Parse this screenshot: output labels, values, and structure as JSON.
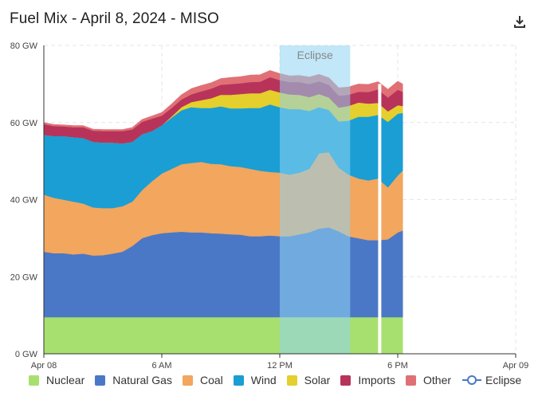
{
  "header": {
    "title": "Fuel Mix - April 8, 2024 - MISO",
    "download_icon": "download-icon"
  },
  "chart_data": {
    "type": "area",
    "stacked": true,
    "title": "Fuel Mix - April 8, 2024 - MISO",
    "xlim": [
      "2024-04-08 00:00",
      "2024-04-09 00:00"
    ],
    "ylim": [
      0,
      80
    ],
    "y_unit": "GW",
    "y_ticks": [
      "0 GW",
      "20 GW",
      "40 GW",
      "60 GW",
      "80 GW"
    ],
    "x_ticks": [
      "Apr 08",
      "6 AM",
      "12 PM",
      "6 PM",
      "Apr 09"
    ],
    "grid": true,
    "legend_position": "bottom",
    "x": [
      "00:00",
      "00:30",
      "01:00",
      "01:30",
      "02:00",
      "02:30",
      "03:00",
      "03:30",
      "04:00",
      "04:30",
      "05:00",
      "05:30",
      "06:00",
      "06:30",
      "07:00",
      "07:30",
      "08:00",
      "08:30",
      "09:00",
      "09:30",
      "10:00",
      "10:30",
      "11:00",
      "11:30",
      "12:00",
      "12:30",
      "13:00",
      "13:30",
      "14:00",
      "14:30",
      "15:00",
      "15:30",
      "16:00",
      "16:30",
      "17:00",
      "17:30",
      "18:00",
      "18:15"
    ],
    "series": [
      {
        "name": "Nuclear",
        "color": "#a8e06f",
        "values": [
          9.5,
          9.5,
          9.5,
          9.5,
          9.5,
          9.5,
          9.5,
          9.5,
          9.5,
          9.5,
          9.5,
          9.5,
          9.5,
          9.5,
          9.5,
          9.5,
          9.5,
          9.5,
          9.5,
          9.5,
          9.5,
          9.5,
          9.5,
          9.5,
          9.5,
          9.5,
          9.5,
          9.5,
          9.5,
          9.5,
          9.5,
          9.5,
          9.5,
          9.5,
          9.5,
          9.5,
          9.5,
          9.5
        ]
      },
      {
        "name": "Natural Gas",
        "color": "#4a78c6",
        "values": [
          17.0,
          16.6,
          16.6,
          16.3,
          16.5,
          16.0,
          16.1,
          16.5,
          17.0,
          18.5,
          20.5,
          21.3,
          21.8,
          22.0,
          22.2,
          22.0,
          22.0,
          21.8,
          21.7,
          21.5,
          21.4,
          21.0,
          21.0,
          21.2,
          21.0,
          21.0,
          21.5,
          22.0,
          23.0,
          23.3,
          22.3,
          21.0,
          20.5,
          20.0,
          20.0,
          20.2,
          22.0,
          22.5
        ]
      },
      {
        "name": "Coal",
        "color": "#f2a65e",
        "values": [
          14.8,
          14.4,
          13.9,
          13.7,
          13.0,
          12.5,
          12.2,
          11.8,
          11.8,
          11.5,
          12.5,
          14.0,
          15.5,
          16.5,
          17.5,
          18.0,
          18.3,
          18.0,
          18.0,
          17.7,
          17.6,
          17.5,
          17.0,
          16.5,
          16.5,
          16.0,
          16.0,
          16.5,
          19.5,
          19.5,
          16.5,
          16.0,
          15.5,
          15.5,
          16.0,
          13.5,
          14.8,
          15.5
        ]
      },
      {
        "name": "Wind",
        "color": "#1a9ed4",
        "values": [
          15.5,
          16.0,
          16.5,
          16.7,
          17.0,
          17.0,
          17.0,
          17.0,
          16.3,
          15.5,
          14.5,
          13.0,
          12.5,
          13.3,
          14.0,
          14.5,
          14.0,
          14.5,
          15.0,
          15.0,
          15.2,
          15.8,
          16.3,
          17.5,
          17.0,
          17.0,
          16.5,
          15.0,
          12.0,
          11.0,
          12.0,
          14.0,
          16.0,
          16.5,
          16.5,
          17.0,
          16.0,
          15.0
        ]
      },
      {
        "name": "Solar",
        "color": "#e4cf2c",
        "values": [
          0,
          0,
          0,
          0,
          0,
          0,
          0,
          0,
          0,
          0,
          0,
          0,
          0,
          0.3,
          0.8,
          1.3,
          2.0,
          2.5,
          3.0,
          3.5,
          3.7,
          3.8,
          3.8,
          3.8,
          3.8,
          3.8,
          3.7,
          3.6,
          3.4,
          3.2,
          3.6,
          3.8,
          3.7,
          3.4,
          3.1,
          2.7,
          2.2,
          1.8
        ]
      },
      {
        "name": "Imports",
        "color": "#b8335a",
        "values": [
          2.8,
          2.6,
          2.5,
          2.6,
          2.8,
          2.9,
          3.0,
          3.0,
          3.2,
          3.2,
          3.2,
          3.2,
          2.5,
          2.2,
          2.0,
          2.0,
          2.3,
          2.5,
          2.6,
          2.8,
          2.8,
          2.9,
          3.0,
          3.3,
          3.2,
          3.2,
          3.3,
          3.4,
          3.3,
          3.3,
          3.1,
          2.9,
          2.8,
          3.0,
          3.5,
          3.6,
          4.0,
          3.7
        ]
      },
      {
        "name": "Other",
        "color": "#e07075",
        "values": [
          0.4,
          0.4,
          0.4,
          0.4,
          0.4,
          0.4,
          0.4,
          0.4,
          0.4,
          0.5,
          0.6,
          0.7,
          0.8,
          1.0,
          1.2,
          1.5,
          1.5,
          1.5,
          1.6,
          1.7,
          1.7,
          1.8,
          1.8,
          1.7,
          1.7,
          1.6,
          1.7,
          1.8,
          1.8,
          1.8,
          2.0,
          2.0,
          2.0,
          2.0,
          2.0,
          2.1,
          2.2,
          2.0
        ]
      }
    ],
    "annotations": [
      {
        "type": "band",
        "label": "Eclipse",
        "x_start": "12:00",
        "x_end": "15:35"
      },
      {
        "type": "vline",
        "x": "17:05"
      }
    ]
  },
  "legend": {
    "items": [
      {
        "label": "Nuclear",
        "color": "#a8e06f"
      },
      {
        "label": "Natural Gas",
        "color": "#4a78c6"
      },
      {
        "label": "Coal",
        "color": "#f2a65e"
      },
      {
        "label": "Wind",
        "color": "#1a9ed4"
      },
      {
        "label": "Solar",
        "color": "#e4cf2c"
      },
      {
        "label": "Imports",
        "color": "#b8335a"
      },
      {
        "label": "Other",
        "color": "#e07075"
      }
    ],
    "eclipse": {
      "label": "Eclipse",
      "color": "#4a78c6"
    }
  },
  "colors": {
    "grid": "#e6e6e6",
    "axis": "#333333",
    "eclipse_band": "#8fd3f2"
  }
}
